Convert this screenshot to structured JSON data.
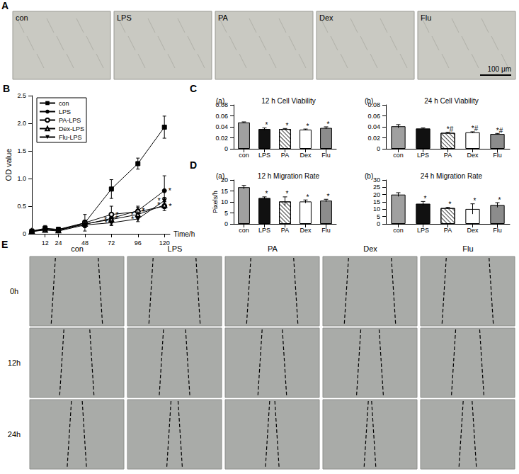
{
  "panel_labels": [
    "A",
    "B",
    "C",
    "D",
    "E"
  ],
  "panel_A": {
    "images": [
      "con",
      "LPS",
      "PA",
      "Dex",
      "Flu"
    ],
    "scale_bar": "100 μm"
  },
  "chart_data": [
    {
      "type": "line",
      "x_label": "Time/h",
      "y_label": "OD value",
      "x": [
        0,
        12,
        24,
        48,
        72,
        96,
        120
      ],
      "xlim": [
        0,
        125
      ],
      "xticks": [
        12,
        24,
        48,
        72,
        96,
        120
      ],
      "ylim": [
        0,
        2.5
      ],
      "yticks": [
        0,
        0.5,
        {
          "value": 1,
          "label": "1.0"
        },
        1.5,
        {
          "value": 2,
          "label": "2.0"
        },
        2.5
      ],
      "grid": false,
      "legend": "top-left",
      "series": [
        {
          "name": "con",
          "color": "#000000",
          "marker": "square",
          "values": [
            0.05,
            0.1,
            0.08,
            0.2,
            0.81,
            1.27,
            1.93
          ],
          "errors": [
            0.02,
            0.05,
            0.04,
            0.15,
            0.17,
            0.1,
            0.2
          ],
          "annotations": [
            null,
            null,
            null,
            null,
            null,
            null,
            null
          ]
        },
        {
          "name": "LPS",
          "color": "#000000",
          "marker": "circle",
          "values": [
            0.05,
            0.09,
            0.08,
            0.17,
            0.28,
            0.42,
            0.78
          ],
          "errors": [
            0.02,
            0.04,
            0.04,
            0.05,
            0.05,
            0.08,
            0.27
          ],
          "annotations": [
            null,
            null,
            null,
            null,
            "*",
            "*",
            "*"
          ]
        },
        {
          "name": "PA-LPS",
          "color": "#000000",
          "marker": "open_circle",
          "values": [
            0.04,
            0.08,
            0.06,
            0.2,
            0.35,
            0.4,
            0.5
          ],
          "errors": [
            0.02,
            0.03,
            0.03,
            0.05,
            0.15,
            0.08,
            0.08
          ],
          "annotations": [
            null,
            null,
            null,
            null,
            "*",
            "*",
            "*"
          ]
        },
        {
          "name": "Dex-LPS",
          "color": "#000000",
          "marker": "open_triangle",
          "values": [
            0.05,
            0.07,
            0.06,
            0.18,
            0.26,
            0.35,
            0.52
          ],
          "errors": [
            0.02,
            0.03,
            0.03,
            0.05,
            0.1,
            0.05,
            0.06
          ],
          "annotations": [
            null,
            null,
            null,
            null,
            "*",
            "*",
            "*"
          ]
        },
        {
          "name": "Flu-LPS",
          "color": "#000000",
          "marker": "down_triangle",
          "values": [
            0.04,
            0.07,
            0.05,
            0.16,
            0.2,
            0.27,
            0.6
          ],
          "errors": [
            0.02,
            0.03,
            0.03,
            0.05,
            0.05,
            0.05,
            0.06
          ],
          "annotations": [
            null,
            null,
            null,
            null,
            "*",
            "*",
            "*"
          ]
        }
      ]
    },
    {
      "type": "bar",
      "subtitle": "(a)",
      "title": "12 h Cell Viability",
      "categories": [
        "con",
        "LPS",
        "PA",
        "Dex",
        "Flu"
      ],
      "values": [
        0.048,
        0.036,
        0.036,
        0.035,
        0.038
      ],
      "errors": [
        0.001,
        0.002,
        0.001,
        0.001,
        0.002
      ],
      "annotations": [
        null,
        "*",
        "*",
        "*",
        "*"
      ],
      "colors": [
        "#a0a0a0",
        "#111111",
        "#ffffff",
        "#ffffff",
        "#8c8c8c"
      ],
      "ylim": [
        0,
        0.08
      ],
      "yticks": [
        0,
        0.02,
        0.04,
        0.06,
        0.08
      ],
      "grid": false
    },
    {
      "type": "bar",
      "subtitle": "(b)",
      "title": "24 h Cell Viability",
      "categories": [
        "con",
        "LPS",
        "PA",
        "Dex",
        "Flu"
      ],
      "values": [
        0.041,
        0.037,
        0.029,
        0.03,
        0.027
      ],
      "errors": [
        0.003,
        0.001,
        0.001,
        0.001,
        0.001
      ],
      "annotations": [
        null,
        null,
        "*#",
        "*#",
        "*#"
      ],
      "colors": [
        "#a0a0a0",
        "#111111",
        "#ffffff",
        "#ffffff",
        "#8c8c8c"
      ],
      "ylim": [
        0,
        0.08
      ],
      "yticks": [
        0,
        0.02,
        0.04,
        0.06,
        0.08
      ],
      "grid": false
    },
    {
      "type": "bar",
      "subtitle": "(a)",
      "title": "12 h Migration Rate",
      "y_label": "Pixels/h",
      "categories": [
        "con",
        "LPS",
        "PA",
        "Dex",
        "Flu"
      ],
      "values": [
        16.7,
        11.8,
        10.2,
        10.2,
        10.6
      ],
      "errors": [
        0.8,
        0.5,
        2.1,
        0.7,
        0.6
      ],
      "annotations": [
        null,
        "*",
        "*",
        "*",
        "*"
      ],
      "colors": [
        "#a0a0a0",
        "#111111",
        "#ffffff",
        "#ffffff",
        "#8c8c8c"
      ],
      "ylim": [
        0,
        20
      ],
      "yticks": [
        0,
        5,
        10,
        15,
        20
      ],
      "grid": false
    },
    {
      "type": "bar",
      "subtitle": "(b)",
      "title": "24 h Migration Rate",
      "categories": [
        "con",
        "LPS",
        "PA",
        "Dex",
        "Flu"
      ],
      "values": [
        20,
        13.8,
        10.8,
        10.2,
        12.9
      ],
      "errors": [
        1.3,
        1.5,
        0.5,
        3.5,
        1.6
      ],
      "annotations": [
        null,
        "*",
        "*",
        "*",
        "*"
      ],
      "colors": [
        "#a0a0a0",
        "#111111",
        "#ffffff",
        "#ffffff",
        "#8c8c8c"
      ],
      "ylim": [
        0,
        30
      ],
      "yticks": [
        0,
        5,
        10,
        15,
        20,
        25,
        30
      ],
      "grid": false
    }
  ],
  "panel_E": {
    "columns": [
      "con",
      "LPS",
      "PA",
      "Dex",
      "Flu"
    ],
    "rows": [
      "0h",
      "12h",
      "24h"
    ]
  }
}
